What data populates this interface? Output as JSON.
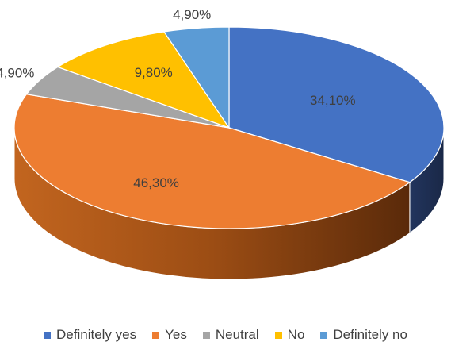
{
  "chart_data": {
    "type": "pie",
    "title": "",
    "labels": [
      "Definitely yes",
      "Yes",
      "Neutral",
      "No",
      "Definitely no"
    ],
    "values": [
      34.1,
      46.3,
      4.9,
      9.8,
      4.9
    ],
    "value_labels": [
      "34,10%",
      "46,30%",
      "4,90%",
      "9,80%",
      "4,90%"
    ],
    "colors": [
      "#4472C4",
      "#ED7D31",
      "#A5A5A5",
      "#FFC000",
      "#5B9BD5"
    ],
    "legend_position": "bottom",
    "style": "3d"
  }
}
